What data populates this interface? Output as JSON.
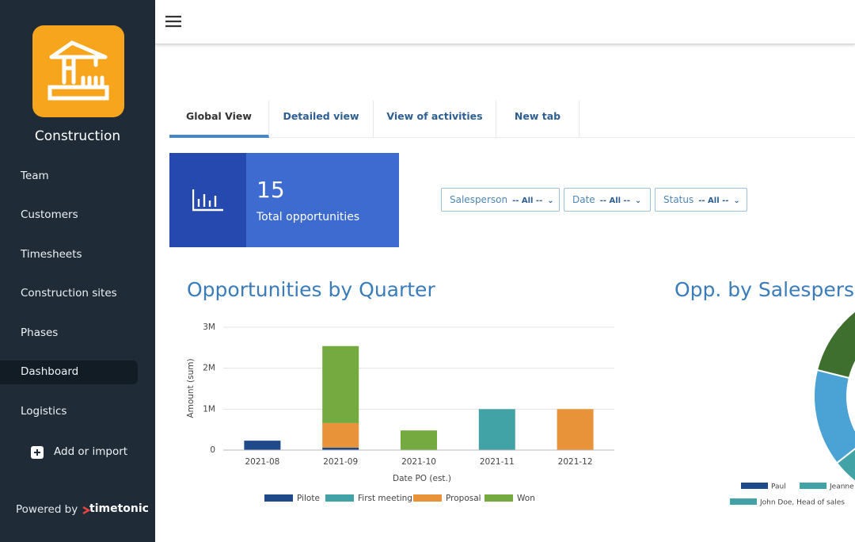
{
  "sidebar": {
    "app_name": "Construction",
    "nav": [
      "Team",
      "Customers",
      "Timesheets",
      "Construction sites",
      "Phases",
      "Dashboard",
      "Logistics"
    ],
    "add_action": "Add or import",
    "footer": {
      "text": "Powered by",
      "brand": "timetonic"
    }
  },
  "tabs": [
    "Global View",
    "Detailed view",
    "View of activities",
    "New tab"
  ],
  "kpi": {
    "value": 15,
    "label": "Total opportunities"
  },
  "filters": [
    {
      "label": "Salesperson",
      "value": "-- All --"
    },
    {
      "label": "Date",
      "value": "-- All --"
    },
    {
      "label": "Status",
      "value": "-- All --"
    }
  ],
  "chart_data": {
    "type": "bar",
    "title": "Opportunities by Quarter",
    "x_label": "Date PO (est.)",
    "y_label": "Amount (sum)",
    "categories": [
      "2021-08",
      "2021-09",
      "2021-10",
      "2021-11",
      "2021-12"
    ],
    "series": [
      {
        "name": "Pilote",
        "color": "#1f4a8a",
        "values": [
          230000,
          60000,
          null,
          null,
          null
        ]
      },
      {
        "name": "First meeting",
        "color": "#41a3a6",
        "values": [
          null,
          null,
          null,
          1000000,
          null
        ]
      },
      {
        "name": "Proposal",
        "color": "#e8923a",
        "values": [
          null,
          600000,
          null,
          null,
          1000000
        ]
      },
      {
        "name": "Won",
        "color": "#74aa3f",
        "values": [
          null,
          1880000,
          480000,
          null,
          null
        ]
      }
    ],
    "ylim": [
      0,
      3000000
    ],
    "yticks": [
      0,
      {
        "value": 1000000,
        "label": "1M"
      },
      {
        "value": 2000000,
        "label": "2M"
      },
      {
        "value": 3000000,
        "label": "3M"
      }
    ],
    "grid": true
  },
  "donut_chart": {
    "title": "Opp. by Salesperson",
    "legend": [
      "Paul",
      "Jeanne",
      "John Doe, Head of sales"
    ]
  }
}
